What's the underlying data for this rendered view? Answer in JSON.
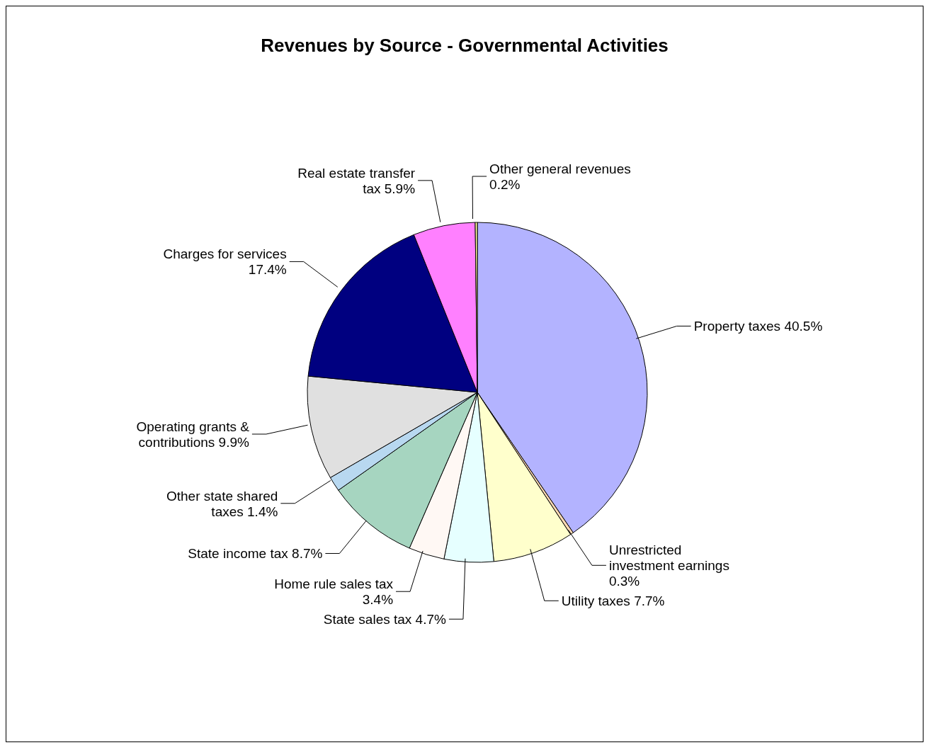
{
  "chart_data": {
    "type": "pie",
    "title": "Revenues by Source - Governmental Activities",
    "categories": [
      "Property taxes",
      "Unrestricted investment earnings",
      "Utility taxes",
      "State sales tax",
      "Home rule sales tax",
      "State income tax",
      "Other state shared taxes",
      "Operating grants & contributions",
      "Charges for services",
      "Real estate transfer tax",
      "Other general revenues"
    ],
    "values": [
      40.5,
      0.3,
      7.7,
      4.7,
      3.4,
      8.7,
      1.4,
      9.9,
      17.4,
      5.9,
      0.2
    ],
    "value_labels": [
      "40.5%",
      "0.3%",
      "7.7%",
      "4.7%",
      "3.4%",
      "8.7%",
      "1.4%",
      "9.9%",
      "17.4%",
      "5.9%",
      "0.2%"
    ],
    "colors": [
      "#b3b3ff",
      "#ffd9b3",
      "#ffffcc",
      "#e6ffff",
      "#fff8f4",
      "#a6d5c0",
      "#b8d8f0",
      "#e0e0e0",
      "#000080",
      "#ff80ff",
      "#ffff99"
    ]
  }
}
